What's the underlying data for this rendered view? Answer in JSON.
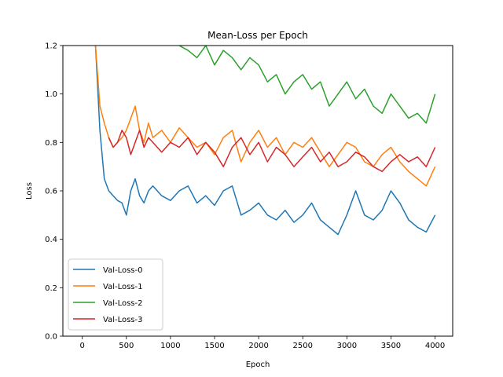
{
  "chart_data": {
    "type": "line",
    "title": "Mean-Loss per Epoch",
    "xlabel": "Epoch",
    "ylabel": "Loss",
    "xlim": [
      -220,
      4200
    ],
    "ylim": [
      0.0,
      1.2
    ],
    "xticks": [
      0,
      500,
      1000,
      1500,
      2000,
      2500,
      3000,
      3500,
      4000
    ],
    "yticks": [
      0.0,
      0.2,
      0.4,
      0.6,
      0.8,
      1.0,
      1.2
    ],
    "xtick_labels": [
      "0",
      "500",
      "1000",
      "1500",
      "2000",
      "2500",
      "3000",
      "3500",
      "4000"
    ],
    "ytick_labels": [
      "0.0",
      "0.2",
      "0.4",
      "0.6",
      "0.8",
      "1.0",
      "1.2"
    ],
    "grid": false,
    "legend_position": "lower-left",
    "series": [
      {
        "name": "Val-Loss-0",
        "color": "#1f77b4",
        "x": [
          150,
          200,
          250,
          300,
          350,
          400,
          450,
          500,
          550,
          600,
          650,
          700,
          750,
          800,
          900,
          1000,
          1100,
          1200,
          1300,
          1400,
          1500,
          1600,
          1700,
          1800,
          1900,
          2000,
          2100,
          2200,
          2300,
          2400,
          2500,
          2600,
          2700,
          2800,
          2900,
          3000,
          3100,
          3200,
          3300,
          3400,
          3500,
          3600,
          3700,
          3800,
          3900,
          4000
        ],
        "y": [
          1.2,
          0.85,
          0.65,
          0.6,
          0.58,
          0.56,
          0.55,
          0.5,
          0.6,
          0.65,
          0.58,
          0.55,
          0.6,
          0.62,
          0.58,
          0.56,
          0.6,
          0.62,
          0.55,
          0.58,
          0.54,
          0.6,
          0.62,
          0.5,
          0.52,
          0.55,
          0.5,
          0.48,
          0.52,
          0.47,
          0.5,
          0.55,
          0.48,
          0.45,
          0.42,
          0.5,
          0.6,
          0.5,
          0.48,
          0.52,
          0.6,
          0.55,
          0.48,
          0.45,
          0.43,
          0.5
        ]
      },
      {
        "name": "Val-Loss-1",
        "color": "#ff7f0e",
        "x": [
          150,
          200,
          250,
          300,
          350,
          400,
          450,
          500,
          550,
          600,
          650,
          700,
          750,
          800,
          900,
          1000,
          1100,
          1200,
          1300,
          1400,
          1500,
          1600,
          1700,
          1800,
          1900,
          2000,
          2100,
          2200,
          2300,
          2400,
          2500,
          2600,
          2700,
          2800,
          2900,
          3000,
          3100,
          3200,
          3300,
          3400,
          3500,
          3600,
          3700,
          3800,
          3900,
          4000
        ],
        "y": [
          1.2,
          0.95,
          0.88,
          0.82,
          0.78,
          0.8,
          0.82,
          0.85,
          0.9,
          0.95,
          0.85,
          0.8,
          0.88,
          0.82,
          0.85,
          0.8,
          0.86,
          0.82,
          0.78,
          0.8,
          0.75,
          0.82,
          0.85,
          0.72,
          0.8,
          0.85,
          0.78,
          0.82,
          0.75,
          0.8,
          0.78,
          0.82,
          0.76,
          0.7,
          0.75,
          0.8,
          0.78,
          0.72,
          0.7,
          0.75,
          0.78,
          0.72,
          0.68,
          0.65,
          0.62,
          0.7
        ]
      },
      {
        "name": "Val-Loss-2",
        "color": "#2ca02c",
        "x": [
          1100,
          1200,
          1300,
          1400,
          1500,
          1600,
          1700,
          1800,
          1900,
          2000,
          2100,
          2200,
          2300,
          2400,
          2500,
          2600,
          2700,
          2800,
          2900,
          3000,
          3100,
          3200,
          3300,
          3400,
          3500,
          3600,
          3700,
          3800,
          3900,
          4000
        ],
        "y": [
          1.2,
          1.18,
          1.15,
          1.2,
          1.12,
          1.18,
          1.15,
          1.1,
          1.15,
          1.12,
          1.05,
          1.08,
          1.0,
          1.05,
          1.08,
          1.02,
          1.05,
          0.95,
          1.0,
          1.05,
          0.98,
          1.02,
          0.95,
          0.92,
          1.0,
          0.95,
          0.9,
          0.92,
          0.88,
          1.0
        ]
      },
      {
        "name": "Val-Loss-3",
        "color": "#d62728",
        "x": [
          300,
          350,
          400,
          450,
          500,
          550,
          600,
          650,
          700,
          750,
          800,
          900,
          1000,
          1100,
          1200,
          1300,
          1400,
          1500,
          1600,
          1700,
          1800,
          1900,
          2000,
          2100,
          2200,
          2300,
          2400,
          2500,
          2600,
          2700,
          2800,
          2900,
          3000,
          3100,
          3200,
          3300,
          3400,
          3500,
          3600,
          3700,
          3800,
          3900,
          4000
        ],
        "y": [
          0.82,
          0.78,
          0.8,
          0.85,
          0.82,
          0.75,
          0.8,
          0.85,
          0.78,
          0.82,
          0.8,
          0.76,
          0.8,
          0.78,
          0.82,
          0.75,
          0.8,
          0.76,
          0.7,
          0.78,
          0.82,
          0.75,
          0.8,
          0.72,
          0.78,
          0.75,
          0.7,
          0.74,
          0.78,
          0.72,
          0.76,
          0.7,
          0.72,
          0.76,
          0.74,
          0.7,
          0.68,
          0.72,
          0.75,
          0.72,
          0.74,
          0.7,
          0.78
        ]
      }
    ]
  }
}
